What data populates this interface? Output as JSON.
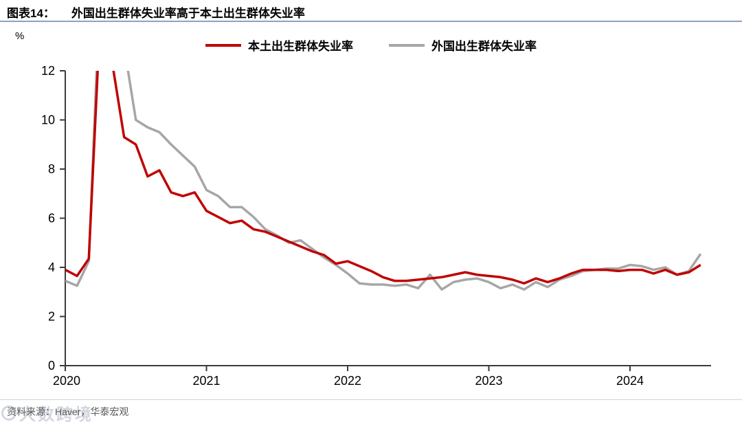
{
  "header": {
    "figure_label": "图表14：",
    "title": "外国出生群体失业率高于本土出生群体失业率"
  },
  "legend": [
    {
      "label": "本土出生群体失业率",
      "color": "#c00000"
    },
    {
      "label": "外国出生群体失业率",
      "color": "#a6a6a6"
    }
  ],
  "axis_unit": "%",
  "footer": {
    "source": "资料来源：Haver，华泰宏观"
  },
  "watermark": {
    "text": "大数跨境"
  },
  "chart_data": {
    "type": "line",
    "title": "外国出生群体失业率高于本土出生群体失业率",
    "unit": "%",
    "x_frequency": "monthly",
    "x_start": "2020-01",
    "x_end": "2024-07",
    "x_tick_labels": [
      "2020",
      "2021",
      "2022",
      "2023",
      "2024"
    ],
    "y_tick_labels": [
      "0",
      "2",
      "4",
      "6",
      "8",
      "10",
      "12"
    ],
    "ylim": [
      0,
      12
    ],
    "grid": false,
    "legend_position": "top-center",
    "series": [
      {
        "name": "本土出生群体失业率",
        "color": "#c00000",
        "values": [
          3.9,
          3.65,
          4.35,
          14.5,
          12.3,
          9.3,
          9.0,
          7.7,
          7.95,
          7.05,
          6.9,
          7.05,
          6.3,
          6.05,
          5.8,
          5.9,
          5.55,
          5.45,
          5.25,
          5.05,
          4.85,
          4.65,
          4.5,
          4.15,
          4.25,
          4.05,
          3.85,
          3.6,
          3.45,
          3.45,
          3.5,
          3.55,
          3.6,
          3.7,
          3.8,
          3.7,
          3.65,
          3.6,
          3.5,
          3.35,
          3.55,
          3.4,
          3.55,
          3.75,
          3.9,
          3.9,
          3.9,
          3.85,
          3.9,
          3.9,
          3.75,
          3.9,
          3.7,
          3.8,
          4.1
        ]
      },
      {
        "name": "外国出生群体失业率",
        "color": "#a6a6a6",
        "values": [
          3.45,
          3.25,
          4.25,
          16.0,
          14.5,
          13.0,
          10.0,
          9.7,
          9.5,
          9.0,
          8.55,
          8.1,
          7.15,
          6.9,
          6.45,
          6.45,
          6.05,
          5.55,
          5.3,
          5.0,
          5.1,
          4.75,
          4.4,
          4.1,
          3.75,
          3.35,
          3.3,
          3.3,
          3.25,
          3.3,
          3.15,
          3.7,
          3.1,
          3.4,
          3.5,
          3.55,
          3.4,
          3.15,
          3.3,
          3.1,
          3.4,
          3.2,
          3.5,
          3.65,
          3.85,
          3.9,
          3.95,
          3.95,
          4.1,
          4.05,
          3.9,
          4.0,
          3.7,
          3.85,
          4.55
        ]
      }
    ]
  }
}
